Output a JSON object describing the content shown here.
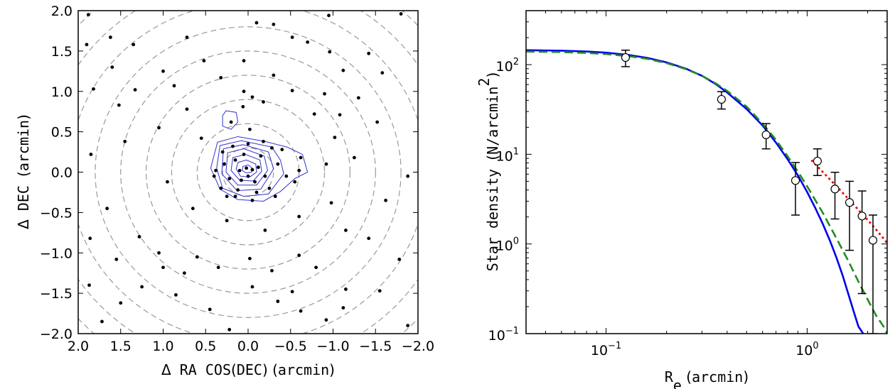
{
  "chart_data": [
    {
      "type": "scatter",
      "title": "",
      "xlabel_parts": [
        {
          "text": "Δ",
          "style": "sans"
        },
        {
          "text": " RA COS",
          "style": "mono"
        },
        {
          "text": "(",
          "style": "sans"
        },
        {
          "text": "DEC",
          "style": "mono"
        },
        {
          "text": ") (",
          "style": "sans"
        },
        {
          "text": "arcmin",
          "style": "mono"
        },
        {
          "text": ")",
          "style": "sans"
        }
      ],
      "ylabel_parts": [
        {
          "text": "Δ",
          "style": "sans"
        },
        {
          "text": " DEC ",
          "style": "mono"
        },
        {
          "text": "(",
          "style": "sans"
        },
        {
          "text": "arcmin",
          "style": "mono"
        },
        {
          "text": ")",
          "style": "sans"
        }
      ],
      "xlim": [
        2.0,
        -2.0
      ],
      "ylim": [
        -2.0,
        2.0
      ],
      "x_inverted": true,
      "xticks": [
        2.0,
        1.5,
        1.0,
        0.5,
        0.0,
        -0.5,
        -1.0,
        -1.5,
        -2.0
      ],
      "xtick_labels": [
        "2.0",
        "1.5",
        "1.0",
        "0.5",
        "0.0",
        "−0.5",
        "−1.0",
        "−1.5",
        "−2.0"
      ],
      "yticks": [
        2.0,
        1.5,
        1.0,
        0.5,
        0.0,
        -0.5,
        -1.0,
        -1.5,
        -2.0
      ],
      "ytick_labels": [
        "2.0",
        "1.5",
        "1.0",
        "0.5",
        "0.0",
        "−0.5",
        "−1.0",
        "−1.5",
        "−2.0"
      ],
      "grid": false,
      "annuli_radii": [
        0.3,
        0.6,
        0.9,
        1.2,
        1.5,
        1.8,
        2.1,
        2.4,
        2.7
      ],
      "annuli_color": "#999999",
      "contour_color": "#3333cc",
      "point_color": "#000000",
      "contours": [
        [
          [
            0.06,
            0.07
          ],
          [
            0.0,
            0.09
          ],
          [
            -0.05,
            0.05
          ],
          [
            -0.04,
            0.0
          ],
          [
            0.02,
            -0.01
          ],
          [
            0.07,
            0.02
          ]
        ],
        [
          [
            0.12,
            0.12
          ],
          [
            0.02,
            0.15
          ],
          [
            -0.09,
            0.1
          ],
          [
            -0.1,
            0.0
          ],
          [
            -0.02,
            -0.06
          ],
          [
            0.09,
            -0.05
          ],
          [
            0.14,
            0.04
          ]
        ],
        [
          [
            0.18,
            0.18
          ],
          [
            0.03,
            0.22
          ],
          [
            -0.14,
            0.15
          ],
          [
            -0.16,
            0.01
          ],
          [
            -0.06,
            -0.11
          ],
          [
            0.1,
            -0.1
          ],
          [
            0.2,
            0.02
          ]
        ],
        [
          [
            0.24,
            0.24
          ],
          [
            0.05,
            0.29
          ],
          [
            -0.19,
            0.2
          ],
          [
            -0.23,
            0.02
          ],
          [
            -0.1,
            -0.16
          ],
          [
            0.12,
            -0.16
          ],
          [
            0.26,
            0.0
          ]
        ],
        [
          [
            0.29,
            0.29
          ],
          [
            0.06,
            0.34
          ],
          [
            -0.24,
            0.25
          ],
          [
            -0.3,
            0.04
          ],
          [
            -0.15,
            -0.21
          ],
          [
            0.13,
            -0.23
          ],
          [
            0.31,
            -0.02
          ]
        ],
        [
          [
            0.33,
            0.33
          ],
          [
            0.08,
            0.39
          ],
          [
            -0.28,
            0.31
          ],
          [
            -0.38,
            0.15
          ],
          [
            -0.42,
            -0.02
          ],
          [
            -0.24,
            -0.27
          ],
          [
            0.05,
            -0.3
          ],
          [
            0.3,
            -0.2
          ],
          [
            0.37,
            0.05
          ]
        ],
        [
          [
            0.36,
            0.37
          ],
          [
            0.12,
            0.44
          ],
          [
            -0.2,
            0.38
          ],
          [
            -0.46,
            0.31
          ],
          [
            -0.64,
            0.22
          ],
          [
            -0.7,
            0.0
          ],
          [
            -0.55,
            -0.08
          ],
          [
            -0.38,
            -0.24
          ],
          [
            -0.18,
            -0.36
          ],
          [
            0.12,
            -0.34
          ],
          [
            0.33,
            -0.21
          ],
          [
            0.44,
            0.05
          ]
        ],
        [
          [
            0.26,
            0.76
          ],
          [
            0.14,
            0.74
          ],
          [
            0.12,
            0.62
          ],
          [
            0.2,
            0.53
          ],
          [
            0.3,
            0.57
          ],
          [
            0.3,
            0.7
          ]
        ]
      ],
      "points": [
        [
          1.88,
          1.95
        ],
        [
          -1.8,
          1.96
        ],
        [
          1.9,
          1.58
        ],
        [
          -0.95,
          1.94
        ],
        [
          -0.1,
          1.85
        ],
        [
          -0.3,
          1.83
        ],
        [
          1.62,
          1.67
        ],
        [
          0.72,
          1.67
        ],
        [
          -0.52,
          1.67
        ],
        [
          1.35,
          1.58
        ],
        [
          -0.96,
          1.49
        ],
        [
          -1.42,
          1.47
        ],
        [
          0.52,
          1.38
        ],
        [
          0.05,
          1.38
        ],
        [
          -0.7,
          1.61
        ],
        [
          1.6,
          1.3
        ],
        [
          1.0,
          1.25
        ],
        [
          0.32,
          1.17
        ],
        [
          -0.3,
          1.2
        ],
        [
          -1.12,
          1.26
        ],
        [
          -1.58,
          1.23
        ],
        [
          1.82,
          1.03
        ],
        [
          1.33,
          1.02
        ],
        [
          0.87,
          1.07
        ],
        [
          0.05,
          1.0
        ],
        [
          -0.05,
          0.93
        ],
        [
          -0.52,
          1.01
        ],
        [
          -0.9,
          0.97
        ],
        [
          -1.3,
          0.92
        ],
        [
          1.52,
          0.83
        ],
        [
          0.72,
          0.78
        ],
        [
          0.06,
          0.81
        ],
        [
          -0.18,
          0.87
        ],
        [
          -0.78,
          0.72
        ],
        [
          -1.08,
          0.71
        ],
        [
          -1.52,
          0.62
        ],
        [
          1.05,
          0.55
        ],
        [
          0.55,
          0.42
        ],
        [
          -0.02,
          0.53
        ],
        [
          -1.02,
          0.43
        ],
        [
          1.45,
          0.38
        ],
        [
          1.85,
          0.22
        ],
        [
          -0.92,
          0.1
        ],
        [
          -1.25,
          0.18
        ],
        [
          -1.88,
          -0.05
        ],
        [
          1.66,
          -0.45
        ],
        [
          0.95,
          -0.12
        ],
        [
          -0.98,
          -0.38
        ],
        [
          -1.62,
          -0.35
        ],
        [
          1.28,
          -0.8
        ],
        [
          0.65,
          -0.45
        ],
        [
          -0.6,
          -0.55
        ],
        [
          -1.15,
          -0.72
        ],
        [
          0.25,
          -0.6
        ],
        [
          -0.2,
          -0.72
        ],
        [
          1.86,
          -0.82
        ],
        [
          1.05,
          -1.0
        ],
        [
          0.6,
          -1.05
        ],
        [
          -0.02,
          -1.07
        ],
        [
          -0.6,
          -1.03
        ],
        [
          -1.42,
          -0.82
        ],
        [
          1.55,
          -1.08
        ],
        [
          1.0,
          -1.18
        ],
        [
          0.35,
          -1.18
        ],
        [
          -0.28,
          -1.22
        ],
        [
          -0.8,
          -1.18
        ],
        [
          -1.78,
          -1.08
        ],
        [
          1.87,
          -1.4
        ],
        [
          1.25,
          -1.42
        ],
        [
          0.85,
          -1.52
        ],
        [
          -0.05,
          -1.42
        ],
        [
          -0.52,
          -1.48
        ],
        [
          -1.15,
          -1.45
        ],
        [
          -1.55,
          -1.47
        ],
        [
          1.5,
          -1.62
        ],
        [
          0.45,
          -1.7
        ],
        [
          -0.62,
          -1.72
        ],
        [
          -1.12,
          -1.68
        ],
        [
          1.72,
          -1.85
        ],
        [
          0.22,
          -1.95
        ],
        [
          -1.88,
          -1.9
        ],
        [
          -0.92,
          -1.83
        ],
        [
          -0.35,
          -1.6
        ],
        [
          0.75,
          -1.25
        ],
        [
          0.02,
          0.05
        ],
        [
          -0.05,
          0.03
        ],
        [
          0.0,
          -0.05
        ],
        [
          0.1,
          0.02
        ],
        [
          -0.12,
          0.06
        ],
        [
          0.08,
          -0.1
        ],
        [
          -0.08,
          -0.12
        ],
        [
          0.15,
          0.15
        ],
        [
          -0.15,
          0.2
        ],
        [
          0.05,
          0.22
        ],
        [
          -0.2,
          -0.05
        ],
        [
          0.22,
          -0.08
        ],
        [
          0.12,
          -0.22
        ],
        [
          -0.1,
          -0.25
        ],
        [
          -0.25,
          -0.2
        ],
        [
          0.28,
          0.1
        ],
        [
          0.3,
          0.25
        ],
        [
          -0.28,
          0.3
        ],
        [
          0.0,
          0.35
        ],
        [
          -0.35,
          0.1
        ],
        [
          -0.45,
          -0.05
        ],
        [
          0.18,
          0.32
        ],
        [
          -0.05,
          -0.35
        ],
        [
          0.32,
          -0.2
        ],
        [
          -0.32,
          -0.3
        ],
        [
          0.15,
          -0.3
        ],
        [
          -0.6,
          0.02
        ],
        [
          -0.62,
          0.18
        ],
        [
          -0.55,
          -0.12
        ],
        [
          -0.4,
          0.28
        ],
        [
          0.4,
          -0.05
        ],
        [
          0.25,
          -0.3
        ],
        [
          0.2,
          0.62
        ],
        [
          0.38,
          0.02
        ],
        [
          -0.18,
          0.38
        ]
      ]
    },
    {
      "type": "line",
      "title": "",
      "xlabel_parts": [
        {
          "text": "R",
          "style": "mono"
        },
        {
          "text": "e",
          "style": "mono-sub"
        },
        {
          "text": " (",
          "style": "sans"
        },
        {
          "text": "arcmin",
          "style": "mono"
        },
        {
          "text": ")",
          "style": "sans"
        }
      ],
      "ylabel_parts": [
        {
          "text": "Star density ",
          "style": "mono"
        },
        {
          "text": "(",
          "style": "sans"
        },
        {
          "text": "N/arcmin",
          "style": "mono"
        },
        {
          "text": "2",
          "style": "mono-sup"
        },
        {
          "text": ")",
          "style": "sans"
        }
      ],
      "xscale": "log",
      "yscale": "log",
      "xlim": [
        0.04,
        2.5
      ],
      "ylim": [
        0.1,
        400
      ],
      "xticks": [
        0.1,
        1.0
      ],
      "xtick_labels": [
        {
          "base": "10",
          "exp": "−1"
        },
        {
          "base": "10",
          "exp": "0"
        }
      ],
      "yticks": [
        0.1,
        1.0,
        10.0,
        100.0
      ],
      "ytick_labels": [
        {
          "base": "10",
          "exp": "−1"
        },
        {
          "base": "10",
          "exp": "0"
        },
        {
          "base": "10",
          "exp": "1"
        },
        {
          "base": "10",
          "exp": "2"
        }
      ],
      "grid": false,
      "series": [
        {
          "style": "solid",
          "color": "#0000ee",
          "x": [
            0.04,
            0.06,
            0.08,
            0.1,
            0.13,
            0.16,
            0.2,
            0.25,
            0.3,
            0.35,
            0.4,
            0.5,
            0.6,
            0.7,
            0.8,
            0.9,
            1.0,
            1.1,
            1.2,
            1.3,
            1.4,
            1.5,
            1.6,
            1.7,
            1.8,
            1.9
          ],
          "y": [
            145,
            143,
            140,
            136,
            128,
            119,
            106,
            90,
            75,
            61,
            49,
            32,
            21,
            13.5,
            8.8,
            5.8,
            3.8,
            2.5,
            1.65,
            1.08,
            0.7,
            0.45,
            0.28,
            0.18,
            0.12,
            0.1
          ]
        },
        {
          "style": "dashed",
          "color": "#228b22",
          "x": [
            0.04,
            0.06,
            0.08,
            0.1,
            0.13,
            0.16,
            0.2,
            0.25,
            0.3,
            0.35,
            0.4,
            0.5,
            0.6,
            0.7,
            0.8,
            0.9,
            1.0,
            1.2,
            1.4,
            1.6,
            1.8,
            2.0,
            2.2,
            2.4,
            2.5
          ],
          "y": [
            140,
            138,
            135,
            131,
            124,
            116,
            104,
            89,
            75,
            62,
            51,
            34,
            22,
            14.5,
            9.5,
            6.4,
            4.4,
            2.2,
            1.15,
            0.65,
            0.38,
            0.24,
            0.16,
            0.12,
            0.1
          ]
        },
        {
          "style": "dotted",
          "color": "#ee0000",
          "x": [
            1.05,
            1.2,
            1.4,
            1.6,
            1.8,
            2.0,
            2.2,
            2.4,
            2.5
          ],
          "y": [
            8.6,
            6.3,
            4.4,
            3.2,
            2.4,
            1.85,
            1.45,
            1.15,
            1.02
          ]
        }
      ],
      "errorbar_points": [
        {
          "x": 0.125,
          "y": 120,
          "ylow": 95,
          "yhigh": 145
        },
        {
          "x": 0.375,
          "y": 41,
          "ylow": 32,
          "yhigh": 50
        },
        {
          "x": 0.625,
          "y": 16.5,
          "ylow": 11.5,
          "yhigh": 22
        },
        {
          "x": 0.875,
          "y": 5.1,
          "ylow": 2.1,
          "yhigh": 8.1
        },
        {
          "x": 1.125,
          "y": 8.4,
          "ylow": 5.8,
          "yhigh": 11.5
        },
        {
          "x": 1.375,
          "y": 4.1,
          "ylow": 1.9,
          "yhigh": 6.3
        },
        {
          "x": 1.625,
          "y": 2.9,
          "ylow": 0.85,
          "yhigh": 5.0
        },
        {
          "x": 1.875,
          "y": 2.05,
          "ylow": 0.28,
          "yhigh": 3.9
        },
        {
          "x": 2.125,
          "y": 1.1,
          "ylow": 0.1,
          "yhigh": 2.1
        }
      ]
    }
  ]
}
